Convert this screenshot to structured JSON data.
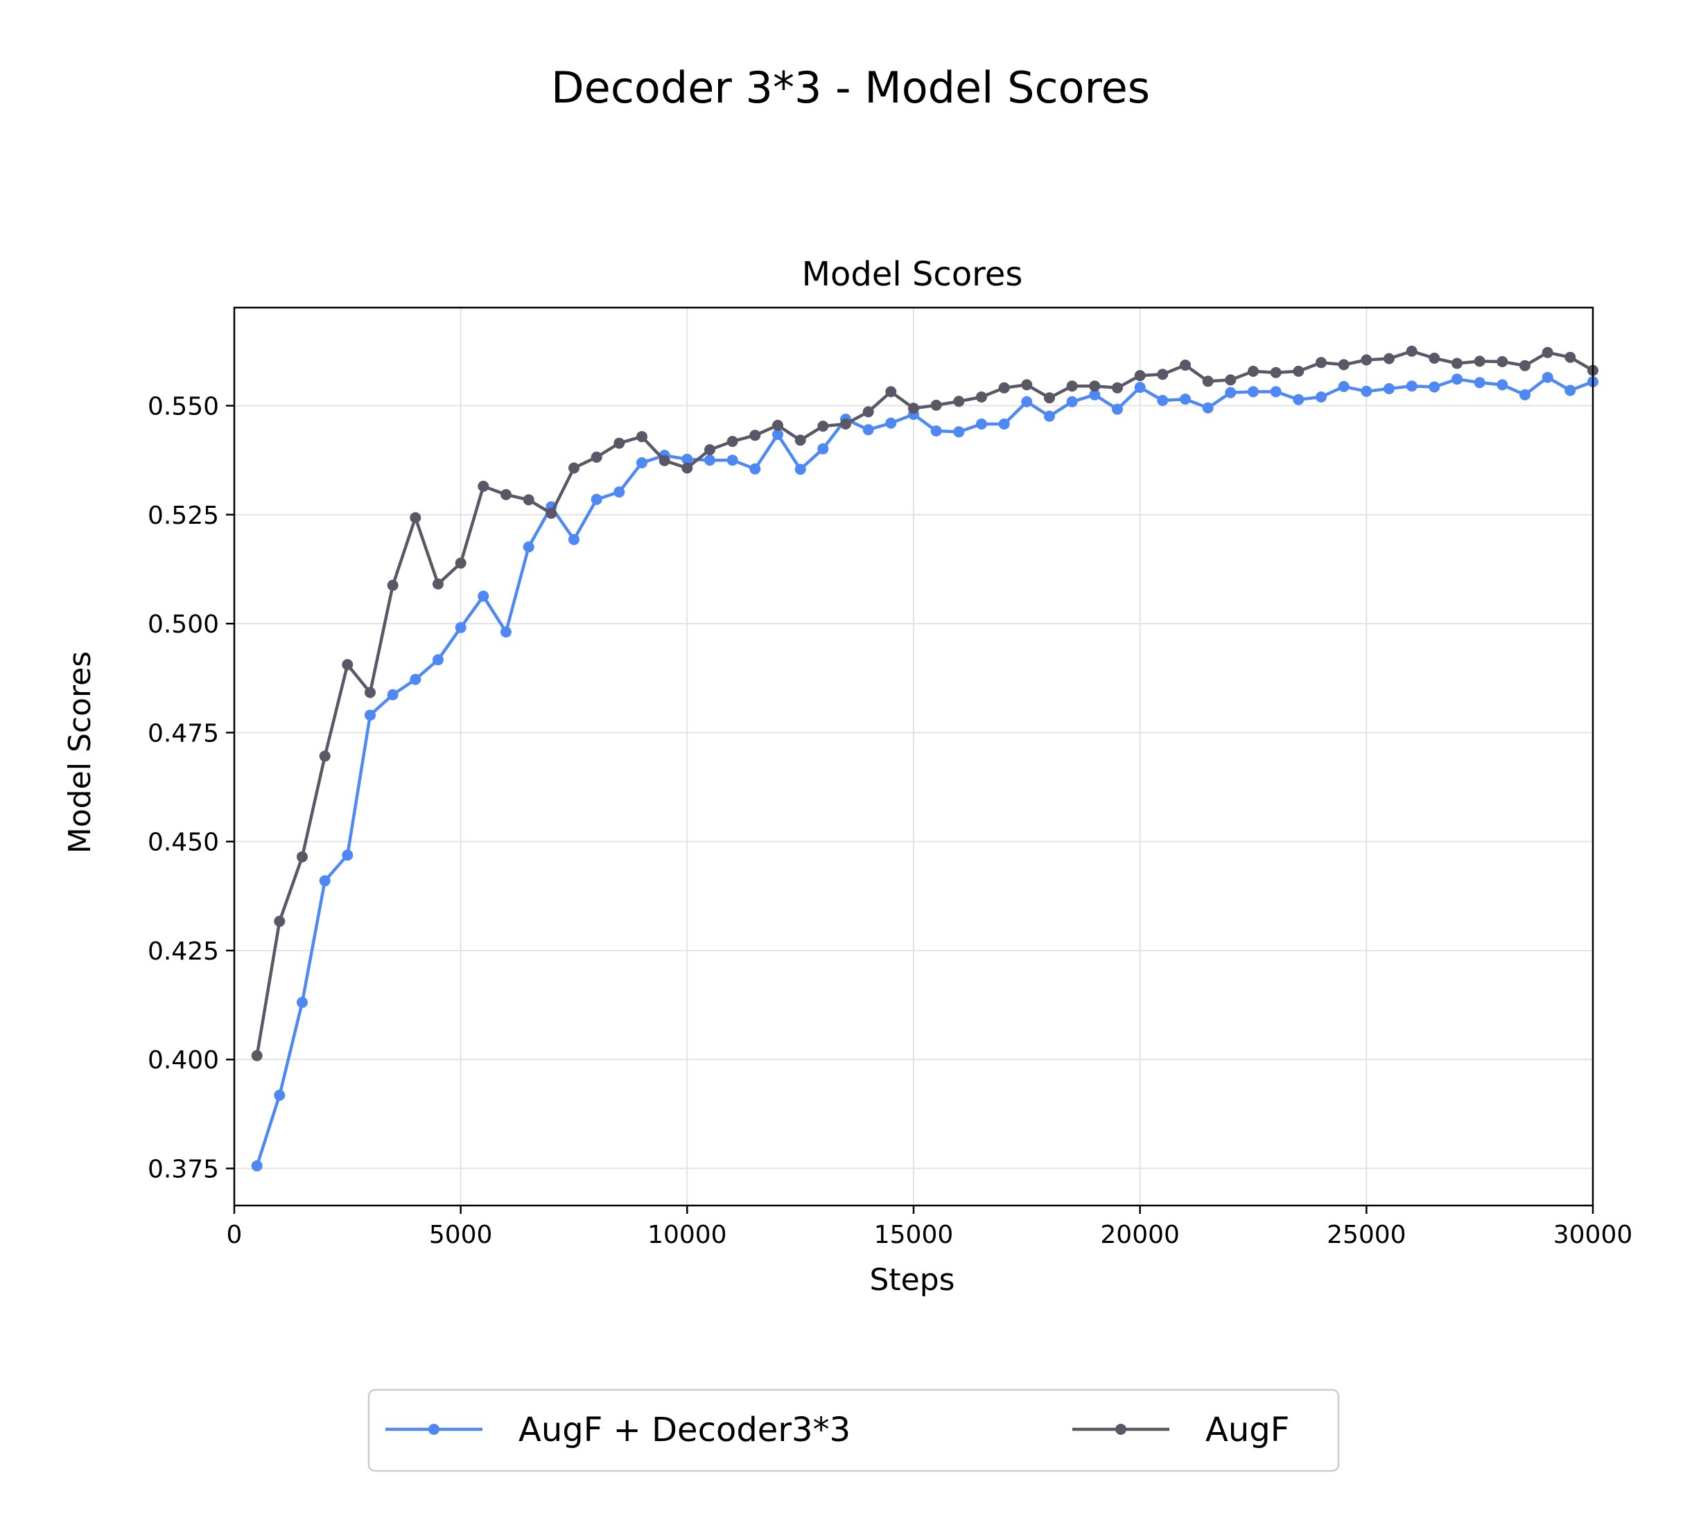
{
  "figure_title": "Decoder 3*3 - Model Scores",
  "chart_data": {
    "type": "line",
    "title": "Model Scores",
    "xlabel": "Steps",
    "ylabel": "Model Scores",
    "xlim": [
      0,
      30000
    ],
    "ylim": [
      0.3665,
      0.5725
    ],
    "xticks": [
      0,
      5000,
      10000,
      15000,
      20000,
      25000,
      30000
    ],
    "xtick_labels": [
      "0",
      "5000",
      "10000",
      "15000",
      "20000",
      "25000",
      "30000"
    ],
    "yticks": [
      0.375,
      0.4,
      0.425,
      0.45,
      0.475,
      0.5,
      0.525,
      0.55
    ],
    "ytick_labels": [
      "0.375",
      "0.400",
      "0.425",
      "0.450",
      "0.475",
      "0.500",
      "0.525",
      "0.550"
    ],
    "grid": true,
    "legend_position": "bottom-center",
    "x": [
      500,
      1000,
      1500,
      2000,
      2500,
      3000,
      3500,
      4000,
      4500,
      5000,
      5500,
      6000,
      6500,
      7000,
      7500,
      8000,
      8500,
      9000,
      9500,
      10000,
      10500,
      11000,
      11500,
      12000,
      12500,
      13000,
      13500,
      14000,
      14500,
      15000,
      15500,
      16000,
      16500,
      17000,
      17500,
      18000,
      18500,
      19000,
      19500,
      20000,
      20500,
      21000,
      21500,
      22000,
      22500,
      23000,
      23500,
      24000,
      24500,
      25000,
      25500,
      26000,
      26500,
      27000,
      27500,
      28000,
      28500,
      29000,
      29500,
      30000
    ],
    "series": [
      {
        "name": "AugF + Decoder3*3",
        "color": "#4d88f5",
        "values": [
          0.3756,
          0.3918,
          0.4131,
          0.441,
          0.4469,
          0.479,
          0.4837,
          0.4872,
          0.4917,
          0.4991,
          0.5063,
          0.4981,
          0.5176,
          0.5268,
          0.5193,
          0.5285,
          0.5302,
          0.5369,
          0.5386,
          0.5377,
          0.5375,
          0.5375,
          0.5355,
          0.5434,
          0.5354,
          0.5401,
          0.5469,
          0.5445,
          0.546,
          0.548,
          0.5442,
          0.544,
          0.5458,
          0.5458,
          0.5509,
          0.5476,
          0.5509,
          0.5525,
          0.5492,
          0.5542,
          0.5512,
          0.5515,
          0.5495,
          0.553,
          0.5532,
          0.5532,
          0.5514,
          0.552,
          0.5544,
          0.5533,
          0.5539,
          0.5545,
          0.5543,
          0.5561,
          0.5553,
          0.5548,
          0.5525,
          0.5565,
          0.5535,
          0.5555
        ]
      },
      {
        "name": "AugF",
        "color": "#5a5866",
        "values": [
          0.4009,
          0.4317,
          0.4465,
          0.4696,
          0.4906,
          0.4842,
          0.5088,
          0.5243,
          0.5091,
          0.5139,
          0.5315,
          0.5296,
          0.5284,
          0.5253,
          0.5357,
          0.5382,
          0.5414,
          0.5429,
          0.5374,
          0.5357,
          0.5399,
          0.5418,
          0.5432,
          0.5455,
          0.5421,
          0.5453,
          0.5458,
          0.5486,
          0.5532,
          0.5494,
          0.5501,
          0.551,
          0.552,
          0.5541,
          0.5548,
          0.5518,
          0.5545,
          0.5545,
          0.5541,
          0.5569,
          0.5572,
          0.5593,
          0.5556,
          0.5559,
          0.5579,
          0.5576,
          0.5579,
          0.5599,
          0.5594,
          0.5605,
          0.5608,
          0.5625,
          0.5609,
          0.5597,
          0.5602,
          0.5601,
          0.5592,
          0.5622,
          0.5611,
          0.5581
        ]
      }
    ]
  }
}
